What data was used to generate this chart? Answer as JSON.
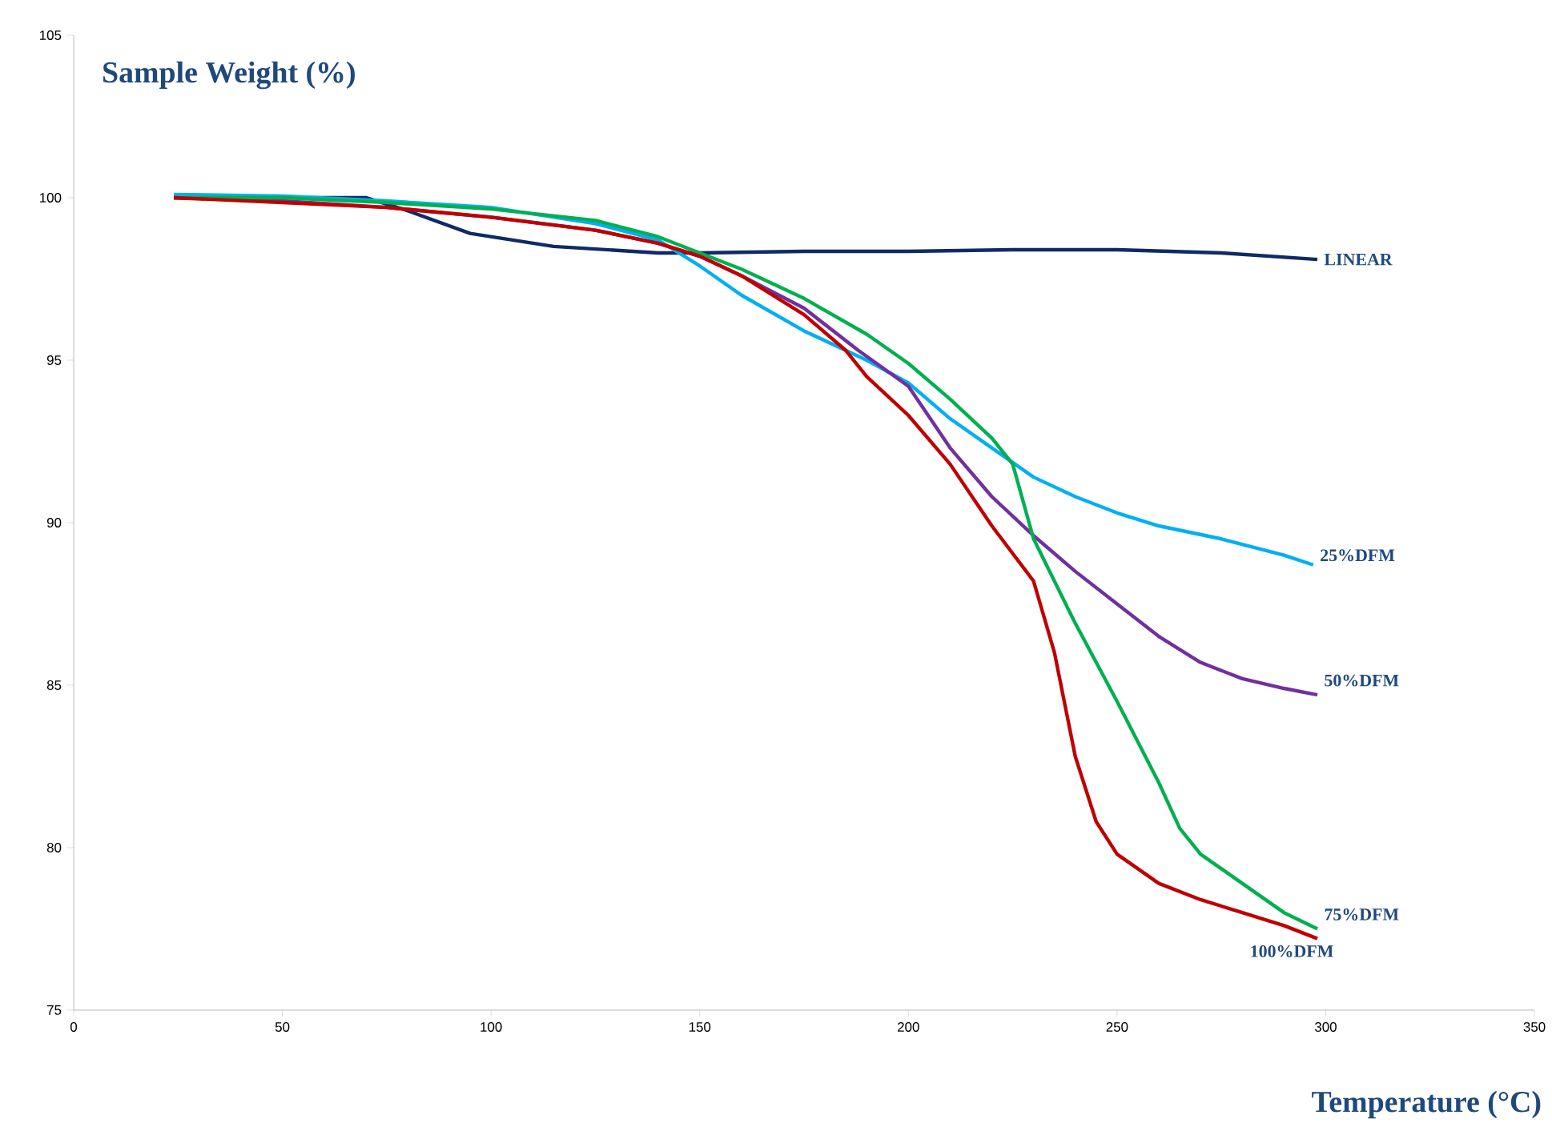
{
  "chart_data": {
    "type": "line",
    "ylabel": "Sample Weight (%)",
    "xlabel": "Temperature (°C)",
    "xlim": [
      0,
      350
    ],
    "xticks": [
      0,
      50,
      100,
      150,
      200,
      250,
      300,
      350
    ],
    "ylim": [
      75,
      105
    ],
    "yticks": [
      75,
      80,
      85,
      90,
      95,
      100,
      105
    ],
    "grid": false,
    "marker": "none",
    "line_style": "solid",
    "series": [
      {
        "name": "LINEAR",
        "color": "#0f2a66",
        "x": [
          24,
          50,
          70,
          80,
          95,
          115,
          140,
          150,
          175,
          200,
          225,
          250,
          275,
          298
        ],
        "values": [
          100,
          100,
          100,
          99.6,
          98.9,
          98.5,
          98.3,
          98.3,
          98.35,
          98.35,
          98.4,
          98.4,
          98.3,
          98.1
        ]
      },
      {
        "name": "25%DFM",
        "color": "#00b0f0",
        "x": [
          24,
          50,
          75,
          100,
          125,
          140,
          150,
          160,
          175,
          190,
          200,
          210,
          220,
          230,
          240,
          250,
          260,
          275,
          290,
          297
        ],
        "values": [
          100.1,
          100.05,
          99.9,
          99.7,
          99.2,
          98.7,
          97.9,
          97.0,
          95.9,
          95.0,
          94.3,
          93.2,
          92.3,
          91.4,
          90.8,
          90.3,
          89.9,
          89.5,
          89.0,
          88.7
        ]
      },
      {
        "name": "50%DFM",
        "color": "#7030a0",
        "x": [
          24,
          50,
          75,
          100,
          125,
          140,
          150,
          160,
          175,
          188,
          200,
          210,
          220,
          230,
          240,
          250,
          260,
          270,
          280,
          290,
          298
        ],
        "values": [
          100,
          99.9,
          99.7,
          99.4,
          99.0,
          98.6,
          98.2,
          97.6,
          96.6,
          95.3,
          94.2,
          92.3,
          90.8,
          89.6,
          88.5,
          87.5,
          86.5,
          85.7,
          85.2,
          84.9,
          84.7
        ]
      },
      {
        "name": "75%DFM",
        "color": "#00b050",
        "x": [
          24,
          50,
          75,
          100,
          125,
          140,
          150,
          160,
          175,
          190,
          200,
          210,
          220,
          225,
          230,
          240,
          250,
          260,
          265,
          270,
          280,
          290,
          298
        ],
        "values": [
          100,
          100,
          99.85,
          99.65,
          99.3,
          98.8,
          98.3,
          97.8,
          96.9,
          95.8,
          94.9,
          93.8,
          92.6,
          91.8,
          89.5,
          86.9,
          84.5,
          82.0,
          80.6,
          79.8,
          78.9,
          78.0,
          77.5
        ]
      },
      {
        "name": "100%DFM",
        "color": "#c00000",
        "x": [
          24,
          50,
          75,
          100,
          125,
          140,
          150,
          160,
          175,
          185,
          190,
          200,
          210,
          220,
          230,
          235,
          240,
          245,
          250,
          260,
          270,
          280,
          290,
          298
        ],
        "values": [
          100,
          99.85,
          99.7,
          99.4,
          99.0,
          98.6,
          98.2,
          97.6,
          96.4,
          95.3,
          94.5,
          93.3,
          91.8,
          89.9,
          88.2,
          86.0,
          82.8,
          80.8,
          79.8,
          78.9,
          78.4,
          78.0,
          77.6,
          77.2
        ]
      }
    ]
  }
}
